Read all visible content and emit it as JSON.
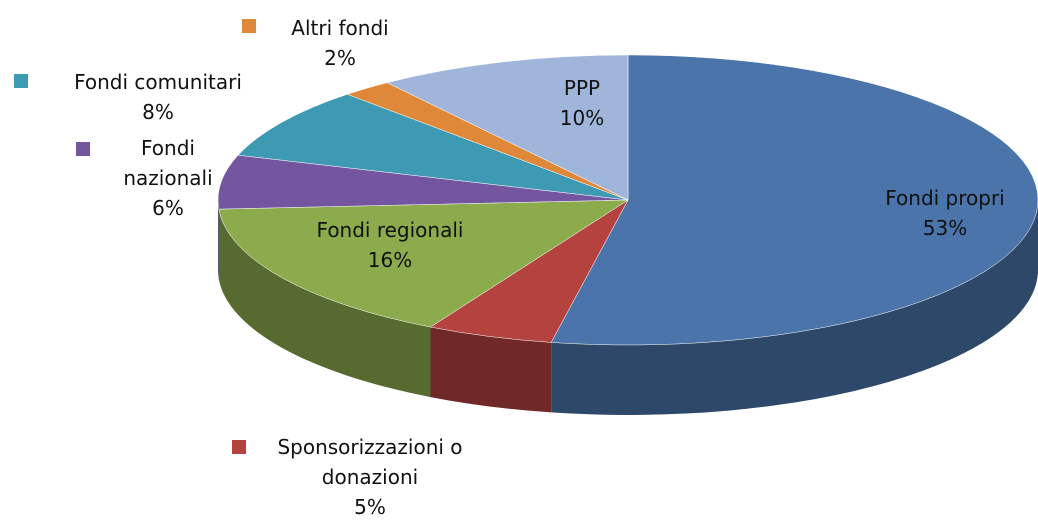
{
  "chart_data": {
    "type": "pie",
    "categories": [
      "Fondi propri",
      "Sponsorizzazioni o donazioni",
      "Fondi regionali",
      "Fondi nazionali",
      "Fondi comunitari",
      "Altri fondi",
      "PPP"
    ],
    "values": [
      53,
      5,
      16,
      6,
      8,
      2,
      10
    ],
    "value_labels": [
      "53%",
      "5%",
      "16%",
      "6%",
      "8%",
      "2%",
      "10%"
    ],
    "colors": [
      "#4a74aa",
      "#b4423f",
      "#8cab4c",
      "#7456a0",
      "#3e9ab2",
      "#e0883a",
      "#a0b5da"
    ]
  }
}
